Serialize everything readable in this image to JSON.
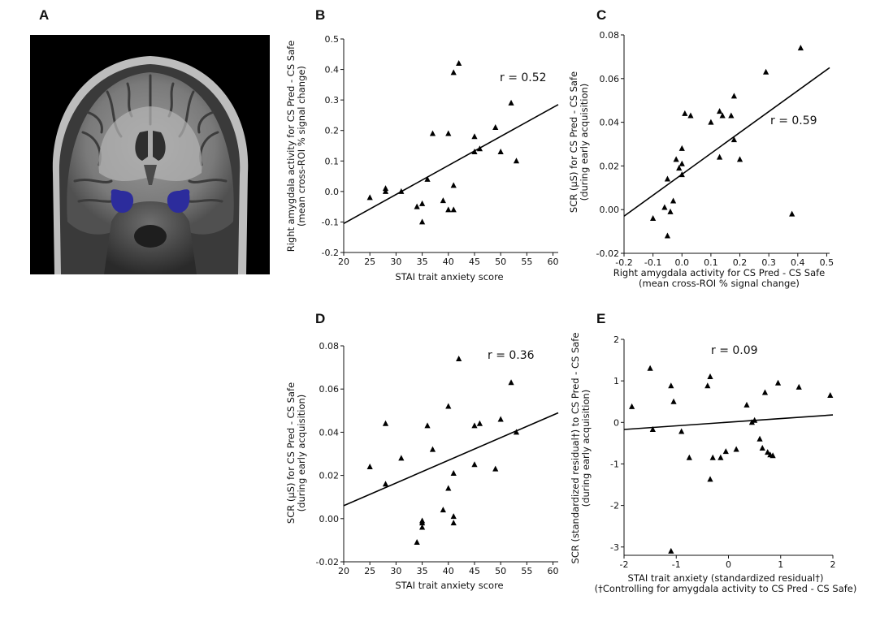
{
  "panels": {
    "A": "A",
    "B": "B",
    "C": "C",
    "D": "D",
    "E": "E"
  },
  "chart_data": [
    {
      "id": "B",
      "type": "scatter",
      "annotation": "r = 0.52",
      "xlabel": "STAI trait anxiety score",
      "ylabel": [
        "Right amygdala activity for CS Pred - CS Safe",
        "(mean cross-ROI % signal change)"
      ],
      "xlim": [
        20,
        61
      ],
      "ylim": [
        -0.2,
        0.5
      ],
      "xticks": [
        20,
        25,
        30,
        35,
        40,
        45,
        50,
        55,
        60
      ],
      "xtick_labels": [
        "20",
        "25",
        "30",
        "35",
        "40",
        "45",
        "50",
        "55",
        "60"
      ],
      "yticks": [
        -0.2,
        -0.1,
        0,
        0.1,
        0.2,
        0.3,
        0.4,
        0.5
      ],
      "ytick_labels": [
        "-0.2",
        "-0.1",
        "0.0",
        "0.1",
        "0.2",
        "0.3",
        "0.4",
        "0.5"
      ],
      "grid": false,
      "marker": "triangle",
      "x": [
        25,
        28,
        28,
        31,
        34,
        35,
        35,
        36,
        37,
        39,
        40,
        40,
        41,
        41,
        41,
        42,
        45,
        45,
        46,
        49,
        50,
        52,
        53
      ],
      "y": [
        -0.02,
        0.01,
        0.0,
        0.0,
        -0.05,
        -0.04,
        -0.1,
        0.04,
        0.19,
        -0.03,
        0.19,
        -0.06,
        -0.06,
        0.02,
        0.39,
        0.42,
        0.18,
        0.13,
        0.14,
        0.21,
        0.13,
        0.29,
        0.1
      ],
      "fit_line": {
        "x": [
          20,
          61
        ],
        "y": [
          -0.105,
          0.285
        ]
      }
    },
    {
      "id": "C",
      "type": "scatter",
      "annotation": "r = 0.59",
      "xlabel": [
        "Right amygdala activity for CS Pred - CS Safe",
        "(mean cross-ROI % signal change)"
      ],
      "ylabel": [
        "SCR (μS) for CS Pred - CS Safe",
        "(during early acquisition)"
      ],
      "xlim": [
        -0.2,
        0.51
      ],
      "ylim": [
        -0.02,
        0.08
      ],
      "xticks": [
        -0.2,
        -0.1,
        0,
        0.1,
        0.2,
        0.3,
        0.4,
        0.5
      ],
      "xtick_labels": [
        "-0.2",
        "-0.1",
        "0.0",
        "0.1",
        "0.2",
        "0.3",
        "0.4",
        "0.5"
      ],
      "yticks": [
        -0.02,
        0,
        0.02,
        0.04,
        0.06,
        0.08
      ],
      "ytick_labels": [
        "-0.02",
        "0.00",
        "0.02",
        "0.04",
        "0.06",
        "0.08"
      ],
      "grid": false,
      "marker": "triangle",
      "x": [
        -0.1,
        -0.05,
        -0.06,
        -0.05,
        -0.04,
        -0.03,
        -0.02,
        -0.01,
        0.0,
        0.0,
        0.01,
        0.0,
        0.03,
        0.1,
        0.13,
        0.14,
        0.13,
        0.17,
        0.18,
        0.18,
        0.2,
        0.29,
        0.38,
        0.41
      ],
      "y": [
        -0.004,
        0.014,
        0.001,
        -0.012,
        -0.001,
        0.004,
        0.023,
        0.019,
        0.016,
        0.028,
        0.044,
        0.021,
        0.043,
        0.04,
        0.045,
        0.043,
        0.024,
        0.043,
        0.052,
        0.032,
        0.023,
        0.063,
        -0.002,
        0.074
      ],
      "fit_line": {
        "x": [
          -0.2,
          0.51
        ],
        "y": [
          -0.003,
          0.065
        ]
      }
    },
    {
      "id": "D",
      "type": "scatter",
      "annotation": "r = 0.36",
      "xlabel": "STAI trait anxiety score",
      "ylabel": [
        "SCR (μS) for CS Pred - CS Safe",
        "(during early acquisition)"
      ],
      "xlim": [
        20,
        61
      ],
      "ylim": [
        -0.02,
        0.08
      ],
      "xticks": [
        20,
        25,
        30,
        35,
        40,
        45,
        50,
        55,
        60
      ],
      "xtick_labels": [
        "20",
        "25",
        "30",
        "35",
        "40",
        "45",
        "50",
        "55",
        "60"
      ],
      "yticks": [
        -0.02,
        0,
        0.02,
        0.04,
        0.06,
        0.08
      ],
      "ytick_labels": [
        "-0.02",
        "0.00",
        "0.02",
        "0.04",
        "0.06",
        "0.08"
      ],
      "grid": false,
      "marker": "triangle",
      "x": [
        25,
        28,
        28,
        31,
        34,
        35,
        35,
        35,
        36,
        37,
        39,
        40,
        40,
        41,
        41,
        41,
        42,
        45,
        45,
        46,
        49,
        50,
        52,
        53
      ],
      "y": [
        0.024,
        0.044,
        0.016,
        0.028,
        -0.011,
        -0.001,
        -0.004,
        -0.002,
        0.043,
        0.032,
        0.004,
        0.052,
        0.014,
        0.021,
        0.001,
        -0.002,
        0.074,
        0.043,
        0.025,
        0.044,
        0.023,
        0.046,
        0.063,
        0.04
      ],
      "fit_line": {
        "x": [
          20,
          61
        ],
        "y": [
          0.006,
          0.049
        ]
      }
    },
    {
      "id": "E",
      "type": "scatter",
      "annotation": "r = 0.09",
      "xlabel": [
        "STAI trait anxiety (standardized residual†)",
        "(†Controlling for amygdala activity to CS Pred - CS Safe)"
      ],
      "ylabel": [
        "SCR (standardized residual†) to CS Pred - CS Safe",
        "(during early acquisition)"
      ],
      "xlim": [
        -2,
        2
      ],
      "ylim": [
        -3.2,
        2
      ],
      "xticks": [
        -2,
        -1,
        0,
        1,
        2
      ],
      "xtick_labels": [
        "-2",
        "-1",
        "0",
        "1",
        "2"
      ],
      "yticks": [
        -3,
        -2,
        -1,
        0,
        1,
        2
      ],
      "ytick_labels": [
        "-3",
        "-2",
        "-1",
        "0",
        "1",
        "2"
      ],
      "grid": false,
      "marker": "triangle",
      "x": [
        -1.85,
        -1.5,
        -1.45,
        -1.1,
        -1.05,
        -1.1,
        -0.9,
        -0.75,
        -0.4,
        -0.35,
        -0.35,
        -0.3,
        -0.15,
        -0.05,
        0.15,
        0.35,
        0.45,
        0.5,
        0.6,
        0.65,
        0.7,
        0.75,
        0.8,
        0.85,
        0.95,
        1.35,
        1.95
      ],
      "y": [
        0.38,
        1.3,
        -0.17,
        0.88,
        0.5,
        -3.1,
        -0.22,
        -0.85,
        0.88,
        1.1,
        -1.37,
        -0.85,
        -0.85,
        -0.7,
        -0.65,
        0.42,
        0.0,
        0.05,
        -0.4,
        -0.62,
        0.72,
        -0.72,
        -0.78,
        -0.8,
        0.95,
        0.85,
        0.65
      ],
      "fit_line": {
        "x": [
          -2,
          2
        ],
        "y": [
          -0.17,
          0.18
        ]
      }
    }
  ]
}
